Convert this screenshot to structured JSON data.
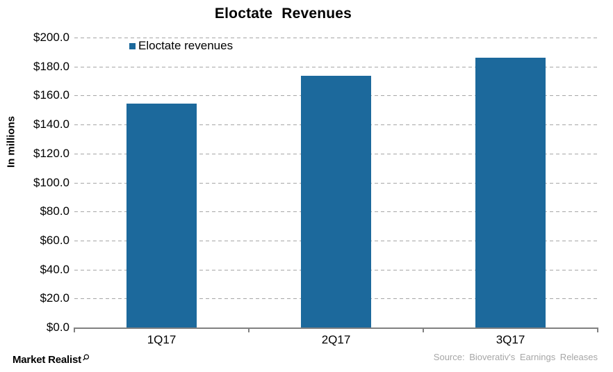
{
  "chart_data": {
    "type": "bar",
    "title": "Eloctate Revenues",
    "ylabel": "In millions",
    "xlabel": "",
    "categories": [
      "1Q17",
      "2Q17",
      "3Q17"
    ],
    "series": [
      {
        "name": "Eloctate revenues",
        "values": [
          154.5,
          173.5,
          186.0
        ]
      }
    ],
    "ylim": [
      0,
      200
    ],
    "ytick_step": 20,
    "yticks": [
      {
        "value": 0,
        "label": "$0.0"
      },
      {
        "value": 20,
        "label": "$20.0"
      },
      {
        "value": 40,
        "label": "$40.0"
      },
      {
        "value": 60,
        "label": "$60.0"
      },
      {
        "value": 80,
        "label": "$80.0"
      },
      {
        "value": 100,
        "label": "$100.0"
      },
      {
        "value": 120,
        "label": "$120.0"
      },
      {
        "value": 140,
        "label": "$140.0"
      },
      {
        "value": 160,
        "label": "$160.0"
      },
      {
        "value": 180,
        "label": "$180.0"
      },
      {
        "value": 200,
        "label": "$200.0"
      }
    ],
    "grid": "horizontal-dashed",
    "legend_position": "top-left-inside",
    "colors": {
      "bar": "#1C699C",
      "gridline": "#A6A6A6",
      "axis": "#808080",
      "text": "#000000",
      "source_text": "#A6A6A6"
    }
  },
  "legend": {
    "label": "Eloctate revenues"
  },
  "footer": {
    "brand": "Market Realist",
    "source": "Source: Bioverativ's Earnings Releases"
  }
}
